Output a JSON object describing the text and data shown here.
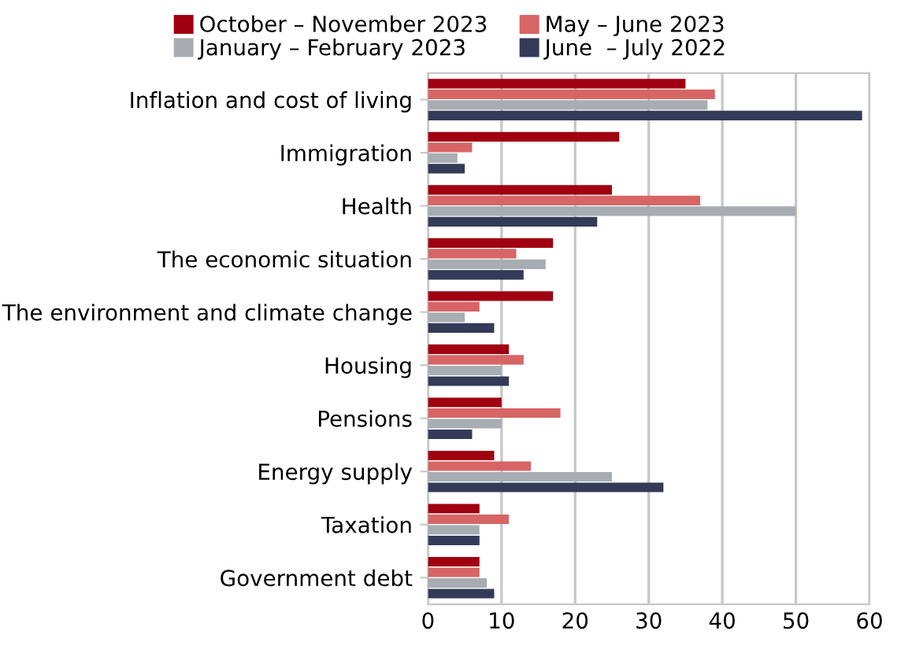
{
  "chart_data": {
    "type": "bar",
    "orientation": "horizontal",
    "categories": [
      "Inflation and cost of living",
      "Immigration",
      "Health",
      "The economic situation",
      "The environment and climate change",
      "Housing",
      "Pensions",
      "Energy supply",
      "Taxation",
      "Government debt"
    ],
    "series": [
      {
        "name": "October – November 2023",
        "color": "#a00010",
        "values": [
          35,
          26,
          25,
          17,
          17,
          11,
          10,
          9,
          7,
          7
        ]
      },
      {
        "name": "May – June 2023",
        "color": "#d76565",
        "values": [
          39,
          6,
          37,
          12,
          7,
          13,
          18,
          14,
          11,
          7
        ]
      },
      {
        "name": "January – February 2023",
        "color": "#a8adb3",
        "values": [
          38,
          4,
          50,
          16,
          5,
          10,
          10,
          25,
          7,
          8
        ]
      },
      {
        "name": "June  – July 2022",
        "color": "#333b58",
        "values": [
          59,
          5,
          23,
          13,
          9,
          11,
          6,
          32,
          7,
          9
        ]
      }
    ],
    "xlim": [
      0,
      60
    ],
    "xticks": [
      0,
      10,
      20,
      30,
      40,
      50,
      60
    ],
    "grid": "x",
    "legend": "top"
  }
}
